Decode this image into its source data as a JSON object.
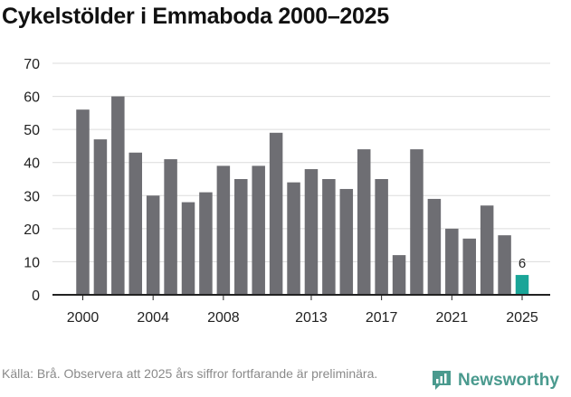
{
  "header": {
    "title": "Cykelstölder i Emmaboda 2000–2025"
  },
  "chart_data": {
    "type": "bar",
    "title": "Cykelstölder i Emmaboda 2000–2025",
    "xlabel": "",
    "ylabel": "",
    "categories": [
      "2000",
      "2001",
      "2002",
      "2003",
      "2004",
      "2005",
      "2006",
      "2007",
      "2008",
      "2009",
      "2010",
      "2011",
      "2012",
      "2013",
      "2014",
      "2015",
      "2016",
      "2017",
      "2018",
      "2019",
      "2020",
      "2021",
      "2022",
      "2023",
      "2024",
      "2025"
    ],
    "values": [
      56,
      47,
      60,
      43,
      30,
      41,
      28,
      31,
      39,
      35,
      39,
      49,
      34,
      38,
      35,
      32,
      44,
      35,
      12,
      44,
      29,
      20,
      17,
      27,
      18,
      6
    ],
    "ylim": [
      0,
      70
    ],
    "yticks": [
      0,
      10,
      20,
      30,
      40,
      50,
      60,
      70
    ],
    "xtick_labels": [
      "2000",
      "2004",
      "2008",
      "2013",
      "2017",
      "2021",
      "2025"
    ],
    "highlight": {
      "category": "2025",
      "label": "6"
    },
    "grid": true,
    "colors": {
      "bar": "#6e6e73",
      "highlight": "#1aa598",
      "grid": "#dcdcdc",
      "axis": "#222222"
    }
  },
  "footer": {
    "source": "Källa: Brå. Observera att 2025 års siffror fortfarande är preliminära.",
    "brand": "Newsworthy",
    "brand_icon": "newsworthy-logo-icon"
  }
}
